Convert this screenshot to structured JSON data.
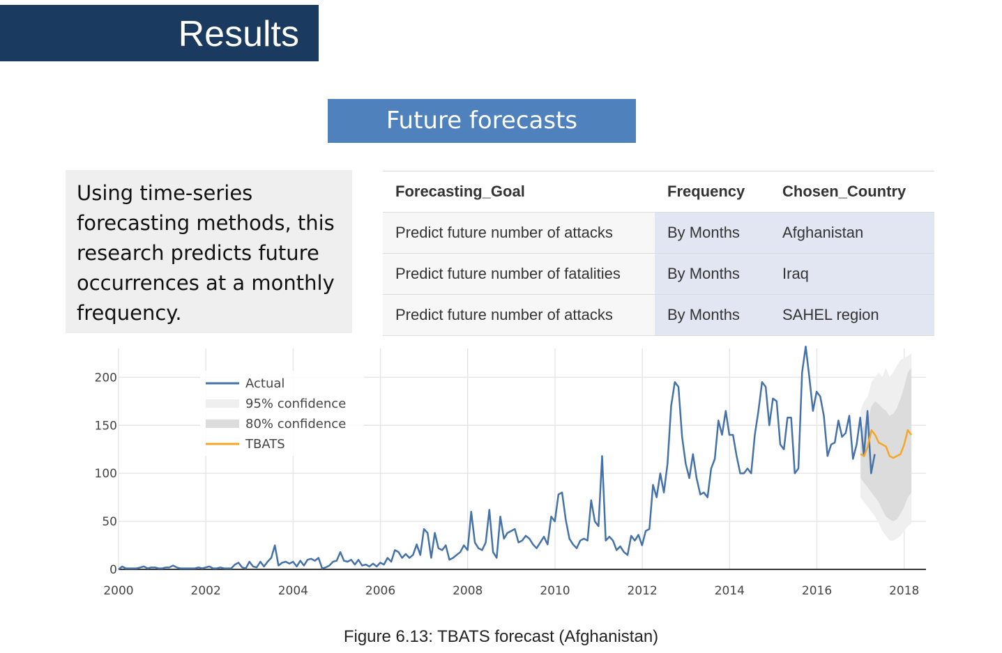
{
  "header": {
    "title": "Results"
  },
  "section": {
    "label": "Future forecasts"
  },
  "description": "Using time-series forecasting methods, this research predicts future occurrences at a monthly frequency.",
  "table": {
    "headers": [
      "Forecasting_Goal",
      "Frequency",
      "Chosen_Country"
    ],
    "rows": [
      [
        "Predict future number of attacks",
        "By Months",
        "Afghanistan"
      ],
      [
        "Predict future number of fatalities",
        "By Months",
        "Iraq"
      ],
      [
        "Predict future number of attacks",
        "By Months",
        "SAHEL region"
      ]
    ]
  },
  "caption": "Figure 6.13: TBATS forecast (Afghanistan)",
  "chart_data": {
    "type": "line",
    "title": "",
    "xlabel": "",
    "ylabel": "",
    "xlim": [
      2000,
      2018.5
    ],
    "ylim": [
      0,
      230
    ],
    "x_ticks": [
      "2000",
      "2002",
      "2004",
      "2006",
      "2008",
      "2010",
      "2012",
      "2014",
      "2016",
      "2018"
    ],
    "y_ticks": [
      "0",
      "50",
      "100",
      "150",
      "200"
    ],
    "grid": true,
    "legend_position": "top-left",
    "legend": [
      "Actual",
      "95% confidence",
      "80% confidence",
      "TBATS"
    ],
    "colors": {
      "actual": "#4472a8",
      "tbats": "#f5a623",
      "ci95": "#efefef",
      "ci80": "#dcdcdc",
      "grid": "#e6e6e6",
      "axis": "#333333"
    },
    "series": [
      {
        "name": "Actual",
        "x_start": 2000.0,
        "x_step": 0.0833,
        "values": [
          0,
          3,
          1,
          1,
          1,
          1,
          2,
          3,
          1,
          2,
          2,
          1,
          1,
          2,
          2,
          4,
          2,
          1,
          1,
          1,
          1,
          1,
          2,
          1,
          2,
          3,
          1,
          1,
          2,
          1,
          1,
          1,
          5,
          7,
          2,
          1,
          8,
          3,
          2,
          8,
          3,
          8,
          12,
          25,
          4,
          7,
          8,
          6,
          8,
          3,
          9,
          4,
          10,
          11,
          9,
          12,
          1,
          2,
          4,
          8,
          9,
          18,
          9,
          8,
          10,
          5,
          10,
          4,
          5,
          3,
          6,
          3,
          7,
          5,
          12,
          8,
          20,
          18,
          12,
          16,
          12,
          15,
          26,
          15,
          42,
          38,
          12,
          38,
          22,
          20,
          25,
          10,
          12,
          15,
          18,
          25,
          20,
          60,
          28,
          22,
          20,
          28,
          62,
          18,
          12,
          55,
          32,
          38,
          40,
          42,
          28,
          30,
          35,
          32,
          26,
          22,
          28,
          34,
          26,
          55,
          50,
          78,
          80,
          52,
          32,
          26,
          22,
          30,
          32,
          30,
          72,
          50,
          45,
          118,
          30,
          34,
          30,
          20,
          24,
          18,
          15,
          35,
          30,
          36,
          25,
          40,
          42,
          88,
          75,
          100,
          80,
          110,
          170,
          195,
          190,
          138,
          110,
          95,
          120,
          95,
          78,
          80,
          75,
          105,
          115,
          155,
          140,
          165,
          140,
          140,
          118,
          100,
          100,
          105,
          100,
          140,
          165,
          195,
          190,
          150,
          178,
          175,
          130,
          125,
          158,
          158,
          100,
          105,
          205,
          232,
          200,
          165,
          185,
          180,
          160,
          118,
          130,
          132,
          155,
          138,
          142,
          160,
          115,
          130,
          158,
          118,
          165,
          100,
          120
        ]
      },
      {
        "name": "TBATS",
        "x_start": 2017.0,
        "x_step": 0.0833,
        "values": [
          120,
          118,
          128,
          145,
          140,
          132,
          130,
          128,
          118,
          116,
          118,
          120,
          130,
          145,
          140
        ]
      }
    ],
    "ci95_upper": [
      165,
      175,
      180,
      195,
      200,
      205,
      200,
      210,
      200,
      205,
      212,
      218,
      220,
      222,
      225
    ],
    "ci95_lower": [
      75,
      70,
      65,
      60,
      55,
      48,
      40,
      35,
      30,
      30,
      32,
      35,
      40,
      45,
      48
    ],
    "ci80_upper": [
      140,
      150,
      155,
      170,
      175,
      172,
      168,
      165,
      160,
      162,
      168,
      178,
      190,
      205,
      210
    ],
    "ci80_lower": [
      95,
      90,
      85,
      80,
      75,
      70,
      62,
      55,
      52,
      50,
      52,
      58,
      65,
      75,
      80
    ]
  }
}
